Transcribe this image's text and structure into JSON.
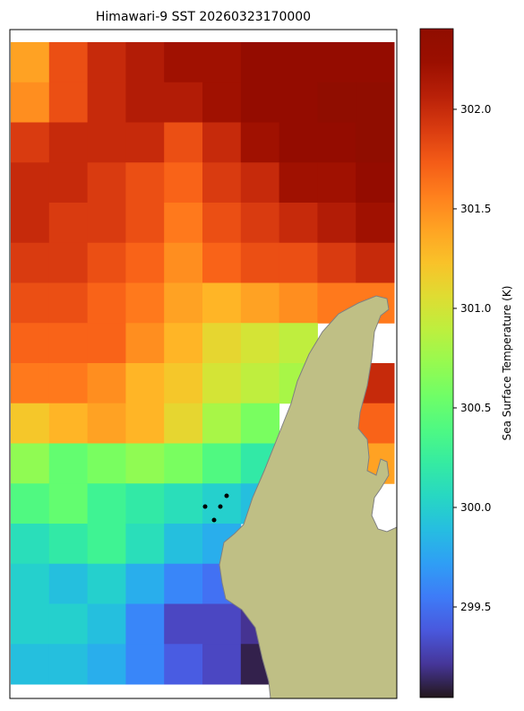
{
  "chart_data": {
    "type": "heatmap",
    "title": "Himawari-9 SST 20260323170000",
    "colorbar_label": "Sea Surface Temperature (K)",
    "colormap": "turbo",
    "clim": [
      299.045,
      302.405
    ],
    "cticks": [
      {
        "value": 299.5,
        "label": "299.5"
      },
      {
        "value": 300,
        "label": "300.0"
      },
      {
        "value": 300.5,
        "label": "300.5"
      },
      {
        "value": 301,
        "label": "301.0"
      },
      {
        "value": 301.5,
        "label": "301.5"
      },
      {
        "value": 302,
        "label": "302.0"
      }
    ],
    "values": [
      [
        301.4,
        301.8,
        302.0,
        302.1,
        302.2,
        302.2,
        302.3,
        302.3,
        302.3,
        302.3
      ],
      [
        301.5,
        301.8,
        302.0,
        302.1,
        302.1,
        302.2,
        302.3,
        302.3,
        302.4,
        302.4
      ],
      [
        301.9,
        302.0,
        302.0,
        302.0,
        301.8,
        302.0,
        302.2,
        302.3,
        302.3,
        302.4
      ],
      [
        302.0,
        302.0,
        301.9,
        301.8,
        301.7,
        301.9,
        302.0,
        302.2,
        302.2,
        302.3
      ],
      [
        302.0,
        301.9,
        301.9,
        301.8,
        301.6,
        301.8,
        301.9,
        302.0,
        302.1,
        302.2
      ],
      [
        301.9,
        301.9,
        301.8,
        301.7,
        301.5,
        301.7,
        301.8,
        301.8,
        301.9,
        302.0
      ],
      [
        301.8,
        301.8,
        301.7,
        301.6,
        301.4,
        301.3,
        301.4,
        301.5,
        301.6,
        301.6
      ],
      [
        301.7,
        301.7,
        301.7,
        301.5,
        301.3,
        301.1,
        301.0,
        300.9,
        null,
        null
      ],
      [
        301.6,
        301.6,
        301.5,
        301.3,
        301.2,
        301.0,
        300.9,
        300.8,
        null,
        302.0
      ],
      [
        301.2,
        301.3,
        301.4,
        301.3,
        301.1,
        300.8,
        300.6,
        null,
        null,
        301.7
      ],
      [
        300.7,
        300.5,
        300.6,
        300.7,
        300.6,
        300.4,
        300.2,
        null,
        null,
        301.4
      ],
      [
        300.4,
        300.5,
        300.3,
        300.2,
        300.1,
        300.0,
        299.9,
        null,
        null,
        null
      ],
      [
        300.1,
        300.2,
        300.3,
        300.1,
        299.9,
        299.8,
        null,
        null,
        null,
        null
      ],
      [
        300.0,
        299.9,
        300.0,
        299.8,
        299.6,
        299.5,
        null,
        null,
        null,
        null
      ],
      [
        300.0,
        300.0,
        299.9,
        299.6,
        299.3,
        299.3,
        299.2,
        null,
        null,
        null
      ],
      [
        299.9,
        299.9,
        299.8,
        299.6,
        299.4,
        299.3,
        299.1,
        null,
        null,
        null
      ]
    ]
  }
}
